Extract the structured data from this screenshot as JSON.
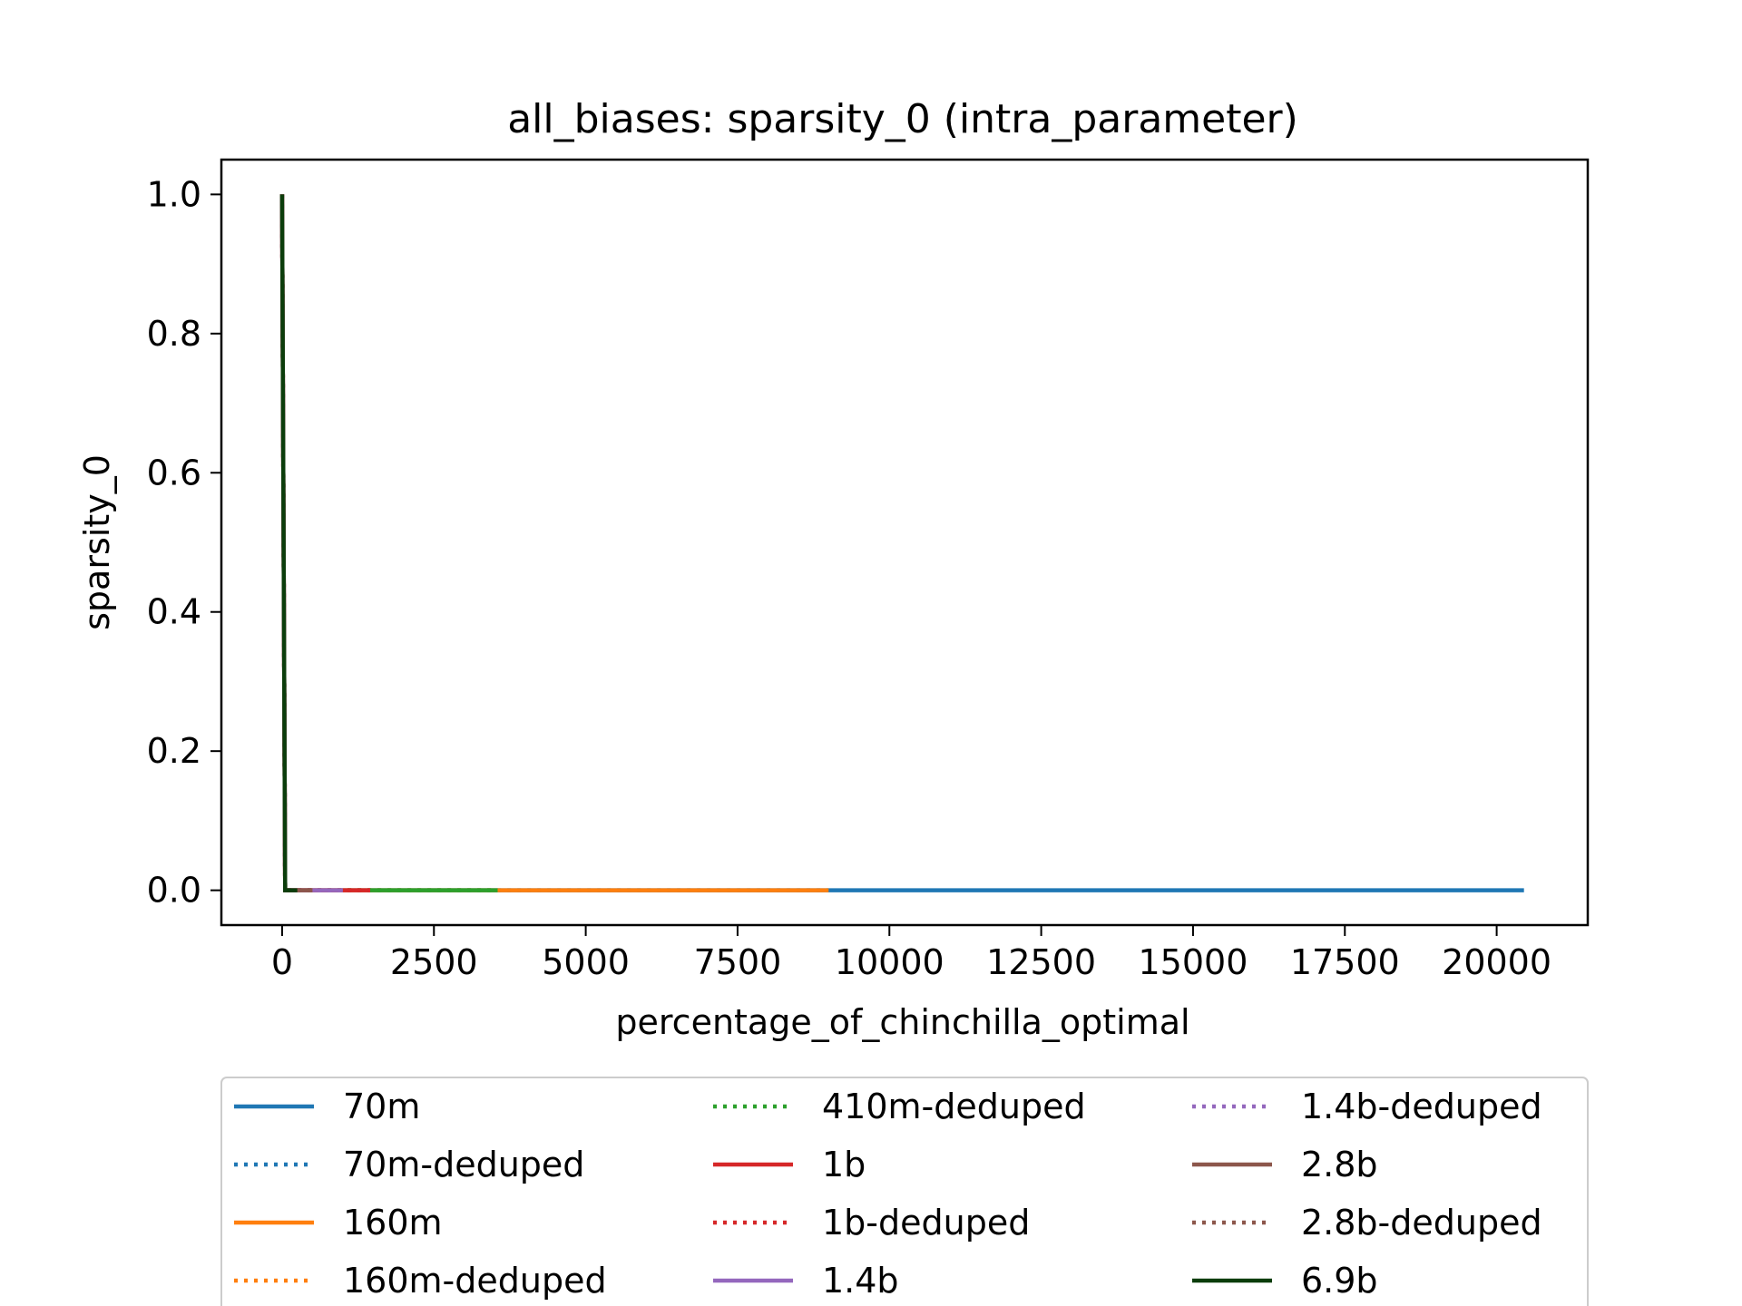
{
  "chart_data": {
    "type": "line",
    "title": "all_biases: sparsity_0 (intra_parameter)",
    "xlabel": "percentage_of_chinchilla_optimal",
    "ylabel": "sparsity_0",
    "xlim": [
      -1000,
      21500
    ],
    "ylim": [
      -0.05,
      1.05
    ],
    "xticks": [
      0,
      2500,
      5000,
      7500,
      10000,
      12500,
      15000,
      17500,
      20000
    ],
    "xtick_labels": [
      "0",
      "2500",
      "5000",
      "7500",
      "10000",
      "12500",
      "15000",
      "17500",
      "20000"
    ],
    "yticks": [
      0.0,
      0.2,
      0.4,
      0.6,
      0.8,
      1.0
    ],
    "ytick_labels": [
      "0.0",
      "0.2",
      "0.4",
      "0.6",
      "0.8",
      "1.0"
    ],
    "grid": false,
    "legend_placement": "below",
    "series": [
      {
        "name": "70m",
        "color": "#1f77b4",
        "style": "solid",
        "x": [
          0,
          50,
          20450
        ],
        "y": [
          1.0,
          0.0,
          0.0
        ]
      },
      {
        "name": "70m-deduped",
        "color": "#1f77b4",
        "style": "dotted",
        "x": [
          0,
          50,
          9000
        ],
        "y": [
          1.0,
          0.0,
          0.0
        ]
      },
      {
        "name": "160m",
        "color": "#ff7f0e",
        "style": "solid",
        "x": [
          0,
          50,
          9000
        ],
        "y": [
          1.0,
          0.0,
          0.0
        ]
      },
      {
        "name": "160m-deduped",
        "color": "#ff7f0e",
        "style": "dotted",
        "x": [
          0,
          50,
          3500
        ],
        "y": [
          1.0,
          0.0,
          0.0
        ]
      },
      {
        "name": "410m-deduped",
        "color": "#2ca02c",
        "style": "dotted",
        "x": [
          0,
          50,
          3500
        ],
        "y": [
          1.0,
          0.0,
          0.0
        ]
      },
      {
        "name": "1b",
        "color": "#d62728",
        "style": "solid",
        "x": [
          0,
          50,
          1450
        ],
        "y": [
          1.0,
          0.0,
          0.0
        ]
      },
      {
        "name": "1b-deduped",
        "color": "#d62728",
        "style": "dotted",
        "x": [
          0,
          50,
          1450
        ],
        "y": [
          1.0,
          0.0,
          0.0
        ]
      },
      {
        "name": "1.4b",
        "color": "#9467bd",
        "style": "solid",
        "x": [
          0,
          50,
          1000
        ],
        "y": [
          1.0,
          0.0,
          0.0
        ]
      },
      {
        "name": "1.4b-deduped",
        "color": "#9467bd",
        "style": "dotted",
        "x": [
          0,
          50,
          1000
        ],
        "y": [
          1.0,
          0.0,
          0.0
        ]
      },
      {
        "name": "2.8b",
        "color": "#8c564b",
        "style": "solid",
        "x": [
          0,
          50,
          500
        ],
        "y": [
          1.0,
          0.0,
          0.0
        ]
      },
      {
        "name": "2.8b-deduped",
        "color": "#8c564b",
        "style": "dotted",
        "x": [
          0,
          50,
          500
        ],
        "y": [
          1.0,
          0.0,
          0.0
        ]
      },
      {
        "name": "6.9b",
        "color": "#0b3d0b",
        "style": "solid",
        "x": [
          0,
          50,
          250
        ],
        "y": [
          1.0,
          0.0,
          0.0
        ]
      }
    ],
    "extra_segments": [
      {
        "color": "#2ca02c",
        "style": "solid",
        "x": [
          1450,
          3550
        ],
        "y": [
          0.0,
          0.0
        ]
      }
    ]
  }
}
